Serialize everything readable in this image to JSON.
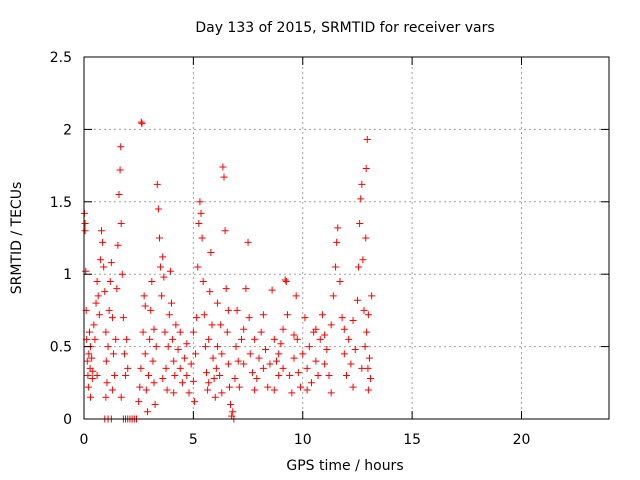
{
  "chart_data": {
    "type": "scatter",
    "title": "Day 133 of 2015, SRMTID for receiver vars",
    "xlabel": "GPS time / hours",
    "ylabel": "SRMTID / TECUs",
    "xlim": [
      0,
      24
    ],
    "ylim": [
      0,
      2.5
    ],
    "x_ticks": [
      0,
      5,
      10,
      15,
      20
    ],
    "x_tick_labels": [
      "0",
      "5",
      "10",
      "15",
      "20"
    ],
    "y_ticks": [
      0,
      0.5,
      1,
      1.5,
      2,
      2.5
    ],
    "y_tick_labels": [
      "0",
      "0.5",
      "1",
      "1.5",
      "2",
      "2.5"
    ],
    "grid": true,
    "marker": "+",
    "color": "#ff0000",
    "series": [
      {
        "name": "SRMTID",
        "points": [
          [
            0.02,
            1.42
          ],
          [
            0.05,
            1.35
          ],
          [
            0.05,
            1.3
          ],
          [
            0.08,
            1.02
          ],
          [
            0.1,
            0.75
          ],
          [
            0.12,
            0.55
          ],
          [
            0.15,
            0.4
          ],
          [
            0.18,
            0.3
          ],
          [
            0.2,
            0.22
          ],
          [
            0.22,
            0.45
          ],
          [
            0.25,
            0.6
          ],
          [
            0.28,
            0.35
          ],
          [
            0.3,
            0.5
          ],
          [
            0.35,
            0.42
          ],
          [
            0.38,
            0.28
          ],
          [
            0.4,
            0.33
          ],
          [
            0.45,
            0.65
          ],
          [
            0.5,
            0.55
          ],
          [
            0.55,
            0.8
          ],
          [
            0.6,
            0.95
          ],
          [
            0.65,
            0.85
          ],
          [
            0.7,
            0.72
          ],
          [
            0.75,
            1.1
          ],
          [
            0.8,
            1.3
          ],
          [
            0.85,
            1.22
          ],
          [
            0.9,
            1.05
          ],
          [
            0.95,
            0.88
          ],
          [
            1.0,
            0.6
          ],
          [
            1.02,
            0.4
          ],
          [
            1.05,
            0.25
          ],
          [
            1.1,
            0.5
          ],
          [
            1.15,
            0.75
          ],
          [
            1.2,
            0.95
          ],
          [
            1.25,
            1.08
          ],
          [
            1.3,
            0.7
          ],
          [
            1.35,
            0.45
          ],
          [
            1.4,
            0.3
          ],
          [
            1.45,
            0.55
          ],
          [
            1.5,
            0.9
          ],
          [
            1.55,
            1.2
          ],
          [
            1.6,
            1.55
          ],
          [
            1.65,
            1.72
          ],
          [
            1.68,
            1.88
          ],
          [
            1.7,
            1.35
          ],
          [
            1.75,
            1.0
          ],
          [
            1.8,
            0.7
          ],
          [
            1.85,
            0.45
          ],
          [
            1.9,
            0.3
          ],
          [
            1.95,
            0.55
          ],
          [
            2.0,
            0.35
          ],
          [
            0.95,
            0.0
          ],
          [
            1.1,
            0.0
          ],
          [
            1.25,
            0.0
          ],
          [
            1.8,
            0.0
          ],
          [
            1.9,
            0.0
          ],
          [
            2.0,
            0.0
          ],
          [
            2.1,
            0.0
          ],
          [
            2.2,
            0.0
          ],
          [
            2.3,
            0.0
          ],
          [
            2.4,
            0.0
          ],
          [
            2.5,
            0.12
          ],
          [
            2.55,
            0.22
          ],
          [
            2.6,
            0.35
          ],
          [
            2.62,
            2.05
          ],
          [
            2.65,
            2.04
          ],
          [
            2.7,
            0.6
          ],
          [
            2.75,
            0.85
          ],
          [
            2.8,
            0.45
          ],
          [
            2.85,
            0.2
          ],
          [
            2.9,
            0.05
          ],
          [
            2.95,
            0.3
          ],
          [
            3.0,
            0.55
          ],
          [
            3.05,
            0.75
          ],
          [
            3.1,
            0.95
          ],
          [
            3.15,
            0.4
          ],
          [
            3.2,
            0.25
          ],
          [
            3.25,
            0.1
          ],
          [
            3.3,
            0.5
          ],
          [
            3.35,
            1.62
          ],
          [
            3.4,
            1.45
          ],
          [
            3.45,
            1.25
          ],
          [
            3.5,
            1.05
          ],
          [
            3.55,
            0.85
          ],
          [
            3.6,
            1.12
          ],
          [
            3.65,
            0.98
          ],
          [
            3.7,
            0.6
          ],
          [
            3.75,
            0.35
          ],
          [
            3.8,
            0.2
          ],
          [
            3.85,
            0.5
          ],
          [
            3.9,
            0.72
          ],
          [
            3.95,
            1.02
          ],
          [
            4.0,
            0.8
          ],
          [
            4.05,
            0.55
          ],
          [
            4.1,
            0.4
          ],
          [
            4.15,
            0.3
          ],
          [
            4.2,
            0.65
          ],
          [
            4.3,
            0.48
          ],
          [
            4.4,
            0.35
          ],
          [
            4.5,
            0.25
          ],
          [
            4.6,
            0.42
          ],
          [
            4.7,
            0.3
          ],
          [
            4.8,
            0.18
          ],
          [
            4.9,
            0.38
          ],
          [
            5.0,
            0.26
          ],
          [
            5.05,
            0.12
          ],
          [
            5.1,
            0.45
          ],
          [
            5.15,
            0.7
          ],
          [
            5.2,
            1.05
          ],
          [
            5.25,
            1.35
          ],
          [
            5.3,
            1.5
          ],
          [
            5.35,
            1.42
          ],
          [
            5.4,
            1.25
          ],
          [
            5.45,
            0.95
          ],
          [
            5.5,
            0.72
          ],
          [
            5.55,
            0.5
          ],
          [
            5.6,
            0.32
          ],
          [
            5.65,
            0.2
          ],
          [
            5.7,
            0.55
          ],
          [
            5.75,
            0.88
          ],
          [
            5.8,
            1.15
          ],
          [
            5.85,
            0.65
          ],
          [
            5.9,
            0.42
          ],
          [
            5.95,
            0.28
          ],
          [
            6.0,
            0.15
          ],
          [
            6.05,
            0.35
          ],
          [
            6.1,
            0.5
          ],
          [
            6.2,
            0.3
          ],
          [
            6.25,
            0.65
          ],
          [
            6.3,
            0.45
          ],
          [
            6.35,
            1.74
          ],
          [
            6.4,
            1.67
          ],
          [
            6.45,
            1.3
          ],
          [
            6.5,
            0.9
          ],
          [
            6.55,
            0.6
          ],
          [
            6.6,
            0.38
          ],
          [
            6.65,
            0.22
          ],
          [
            6.7,
            0.1
          ],
          [
            6.75,
            0.02
          ],
          [
            6.8,
            0.05
          ],
          [
            6.85,
            0.0
          ],
          [
            6.9,
            0.28
          ],
          [
            6.95,
            0.5
          ],
          [
            7.0,
            0.75
          ],
          [
            7.05,
            0.4
          ],
          [
            7.1,
            0.22
          ],
          [
            7.2,
            0.55
          ],
          [
            7.3,
            0.38
          ],
          [
            7.4,
            0.9
          ],
          [
            7.5,
            1.22
          ],
          [
            7.55,
            0.7
          ],
          [
            7.6,
            0.45
          ],
          [
            7.7,
            0.32
          ],
          [
            7.8,
            0.55
          ],
          [
            7.9,
            0.28
          ],
          [
            8.0,
            0.42
          ],
          [
            8.1,
            0.6
          ],
          [
            8.2,
            0.35
          ],
          [
            8.3,
            0.48
          ],
          [
            8.4,
            0.22
          ],
          [
            8.5,
            0.38
          ],
          [
            8.6,
            0.89
          ],
          [
            8.7,
            0.55
          ],
          [
            8.8,
            0.4
          ],
          [
            8.9,
            0.3
          ],
          [
            9.0,
            0.52
          ],
          [
            9.1,
            0.35
          ],
          [
            9.2,
            0.96
          ],
          [
            9.25,
            0.95
          ],
          [
            9.3,
            0.72
          ],
          [
            9.4,
            0.3
          ],
          [
            9.5,
            0.18
          ],
          [
            9.6,
            0.42
          ],
          [
            9.7,
            0.85
          ],
          [
            9.75,
            0.55
          ],
          [
            9.8,
            0.32
          ],
          [
            9.9,
            0.22
          ],
          [
            10.0,
            0.45
          ],
          [
            10.1,
            0.7
          ],
          [
            10.2,
            0.35
          ],
          [
            10.3,
            0.5
          ],
          [
            10.4,
            0.25
          ],
          [
            10.5,
            0.6
          ],
          [
            10.6,
            0.4
          ],
          [
            10.7,
            0.3
          ],
          [
            10.8,
            0.55
          ],
          [
            10.9,
            0.72
          ],
          [
            11.0,
            0.38
          ],
          [
            11.1,
            0.48
          ],
          [
            11.2,
            0.3
          ],
          [
            11.3,
            0.65
          ],
          [
            11.4,
            0.85
          ],
          [
            11.5,
            1.05
          ],
          [
            11.55,
            1.22
          ],
          [
            11.6,
            1.32
          ],
          [
            11.7,
            0.95
          ],
          [
            11.8,
            0.7
          ],
          [
            11.9,
            0.45
          ],
          [
            12.0,
            0.3
          ],
          [
            12.1,
            0.55
          ],
          [
            12.2,
            0.38
          ],
          [
            12.3,
            0.22
          ],
          [
            12.4,
            0.48
          ],
          [
            12.5,
            0.82
          ],
          [
            12.55,
            1.05
          ],
          [
            12.6,
            1.35
          ],
          [
            12.65,
            1.52
          ],
          [
            12.7,
            1.62
          ],
          [
            12.75,
            1.1
          ],
          [
            12.8,
            0.75
          ],
          [
            12.85,
            0.5
          ],
          [
            12.9,
            1.73
          ],
          [
            12.95,
            1.93
          ],
          [
            13.0,
            0.72
          ],
          [
            13.05,
            0.42
          ],
          [
            13.1,
            0.28
          ],
          [
            13.15,
            0.85
          ],
          [
            12.88,
            1.25
          ],
          [
            12.92,
            0.6
          ],
          [
            13.0,
            0.2
          ],
          [
            12.98,
            0.35
          ],
          [
            0.3,
            0.15
          ],
          [
            0.6,
            0.3
          ],
          [
            1.3,
            0.2
          ],
          [
            1.7,
            0.15
          ],
          [
            2.8,
            0.78
          ],
          [
            3.2,
            0.62
          ],
          [
            4.1,
            0.18
          ],
          [
            4.4,
            0.6
          ],
          [
            4.7,
            0.52
          ],
          [
            5.0,
            0.6
          ],
          [
            5.7,
            0.25
          ],
          [
            6.1,
            0.8
          ],
          [
            6.6,
            0.75
          ],
          [
            7.3,
            0.62
          ],
          [
            7.8,
            0.2
          ],
          [
            8.2,
            0.72
          ],
          [
            8.7,
            0.2
          ],
          [
            9.1,
            0.62
          ],
          [
            9.6,
            0.58
          ],
          [
            10.2,
            0.2
          ],
          [
            10.6,
            0.62
          ],
          [
            11.0,
            0.58
          ],
          [
            11.3,
            0.18
          ],
          [
            11.9,
            0.62
          ],
          [
            12.3,
            0.68
          ],
          [
            12.7,
            0.35
          ],
          [
            1.0,
            0.15
          ],
          [
            3.6,
            0.28
          ],
          [
            6.3,
            0.18
          ],
          [
            8.9,
            0.45
          ]
        ]
      }
    ]
  }
}
